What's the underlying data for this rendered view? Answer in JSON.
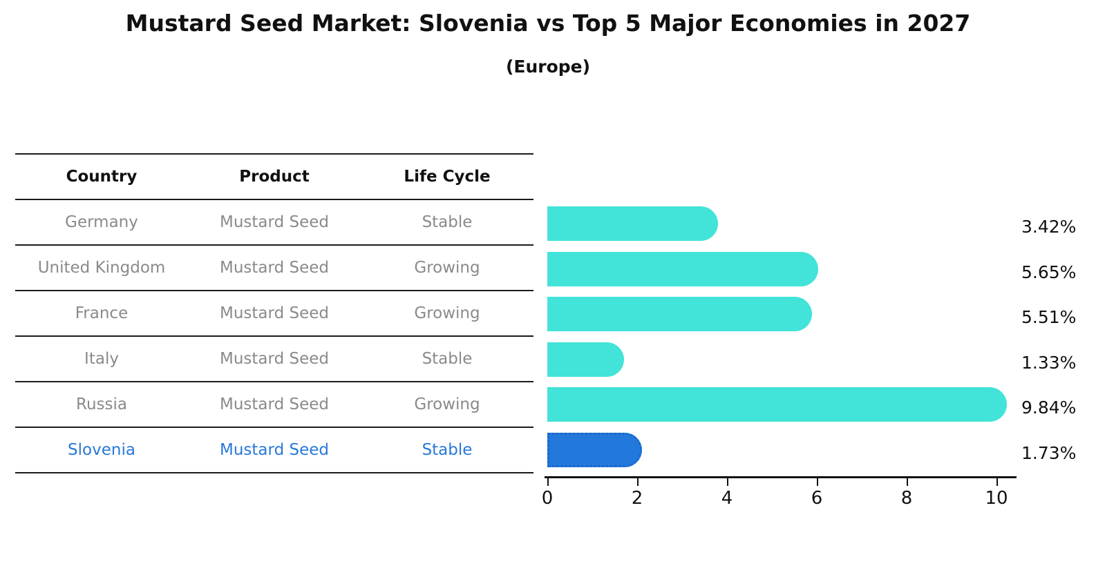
{
  "title": "Mustard Seed Market: Slovenia vs Top 5 Major Economies in 2027",
  "subtitle": "(Europe)",
  "table": {
    "headers": [
      "Country",
      "Product",
      "Life Cycle"
    ],
    "rows": [
      {
        "country": "Germany",
        "product": "Mustard Seed",
        "life_cycle": "Stable",
        "highlight": false
      },
      {
        "country": "United Kingdom",
        "product": "Mustard Seed",
        "life_cycle": "Growing",
        "highlight": false
      },
      {
        "country": "France",
        "product": "Mustard Seed",
        "life_cycle": "Growing",
        "highlight": false
      },
      {
        "country": "Italy",
        "product": "Mustard Seed",
        "life_cycle": "Stable",
        "highlight": false
      },
      {
        "country": "Russia",
        "product": "Mustard Seed",
        "life_cycle": "Growing",
        "highlight": false
      },
      {
        "country": "Slovenia",
        "product": "Mustard Seed",
        "life_cycle": "Stable",
        "highlight": true
      }
    ]
  },
  "chart_data": {
    "type": "bar",
    "orientation": "horizontal",
    "categories": [
      "Germany",
      "United Kingdom",
      "France",
      "Italy",
      "Russia",
      "Slovenia"
    ],
    "values": [
      3.42,
      5.65,
      5.51,
      1.33,
      9.84,
      1.73
    ],
    "value_labels": [
      "3.42%",
      "5.65%",
      "5.51%",
      "1.33%",
      "9.84%",
      "1.73%"
    ],
    "unit": "%",
    "highlight_index": 5,
    "x_ticks": [
      "0",
      "2",
      "4",
      "6",
      "8",
      "10"
    ],
    "x_tick_values": [
      0,
      2,
      4,
      6,
      8,
      10
    ],
    "xlim": [
      0,
      10.5
    ],
    "grid": false,
    "legend": false,
    "title": "Mustard Seed Market: Slovenia vs Top 5 Major Economies in 2027",
    "subtitle": "(Europe)"
  },
  "colors": {
    "bar": "#42e3d8",
    "highlight_bar": "#2378dc",
    "highlight_bar_edge": "#1b66c9",
    "highlight_text": "#2878d8",
    "row_text": "#8a8a8a",
    "header_text": "#111111",
    "axis": "#111111"
  }
}
